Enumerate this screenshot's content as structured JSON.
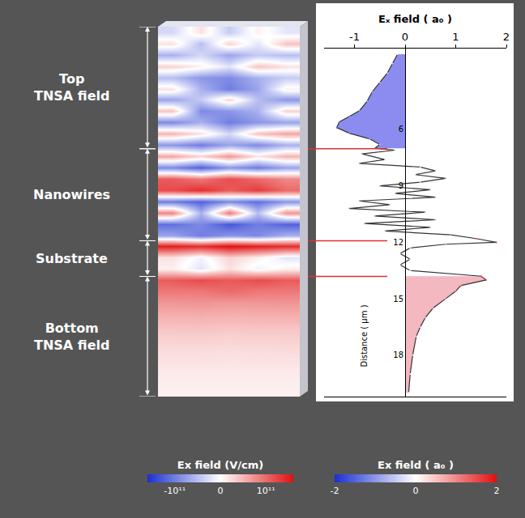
{
  "chart_data": [
    {
      "type": "heatmap",
      "tick_labels": false,
      "y": [
        0.8,
        1.4,
        2.0,
        2.6,
        3.2,
        3.8,
        4.4,
        5.0,
        5.6,
        6.2,
        6.8,
        7.4,
        8.0,
        8.6,
        9.2,
        9.8,
        10.4,
        11.0,
        11.6,
        12.2,
        12.8,
        13.4,
        14.0,
        14.6,
        15.2,
        15.8,
        16.4,
        17.0,
        17.6,
        18.2,
        18.8,
        19.4,
        20.0
      ],
      "cells": [
        [
          -30000000000.0,
          20000000000.0,
          -40000000000.0,
          10000000000.0,
          -20000000000.0
        ],
        [
          20000000000.0,
          -50000000000.0,
          30000000000.0,
          -20000000000.0,
          40000000000.0
        ],
        [
          -60000000000.0,
          -30000000000.0,
          -70000000000.0,
          -40000000000.0,
          -50000000000.0
        ],
        [
          30000000000.0,
          10000000000.0,
          -20000000000.0,
          40000000000.0,
          20000000000.0
        ],
        [
          -50000000000.0,
          -80000000000.0,
          -90000000000.0,
          -60000000000.0,
          -40000000000.0
        ],
        [
          20000000000.0,
          -60000000000.0,
          -100000000000.0,
          -70000000000.0,
          10000000000.0
        ],
        [
          -70000000000.0,
          -40000000000.0,
          30000000000.0,
          -50000000000.0,
          -80000000000.0
        ],
        [
          40000000000.0,
          -90000000000.0,
          -80000000000.0,
          -60000000000.0,
          30000000000.0
        ],
        [
          -90000000000.0,
          -60000000000.0,
          -100000000000.0,
          -80000000000.0,
          -70000000000.0
        ],
        [
          50000000000.0,
          20000000000.0,
          -30000000000.0,
          40000000000.0,
          60000000000.0
        ],
        [
          -80000000000.0,
          -100000000000.0,
          -70000000000.0,
          -90000000000.0,
          -60000000000.0
        ],
        [
          60000000000.0,
          30000000000.0,
          70000000000.0,
          20000000000.0,
          50000000000.0
        ],
        [
          -90000000000.0,
          -120000000000.0,
          -80000000000.0,
          -100000000000.0,
          -70000000000.0
        ],
        [
          110000000000.0,
          90000000000.0,
          120000000000.0,
          100000000000.0,
          80000000000.0
        ],
        [
          120000000000.0,
          140000000000.0,
          110000000000.0,
          130000000000.0,
          100000000000.0
        ],
        [
          -100000000000.0,
          -120000000000.0,
          -90000000000.0,
          -110000000000.0,
          -80000000000.0
        ],
        [
          80000000000.0,
          -60000000000.0,
          90000000000.0,
          -50000000000.0,
          70000000000.0
        ],
        [
          -110000000000.0,
          -90000000000.0,
          -130000000000.0,
          -100000000000.0,
          -120000000000.0
        ],
        [
          -70000000000.0,
          -100000000000.0,
          -80000000000.0,
          -90000000000.0,
          -60000000000.0
        ],
        [
          150000000000.0,
          140000000000.0,
          160000000000.0,
          150000000000.0,
          140000000000.0
        ],
        [
          20000000000.0,
          -10000000000.0,
          30000000000.0,
          10000000000.0,
          -20000000000.0
        ],
        [
          10000000000.0,
          -20000000000.0,
          20000000000.0,
          -10000000000.0,
          10000000000.0
        ],
        [
          110000000000.0,
          120000000000.0,
          110000000000.0,
          120000000000.0,
          110000000000.0
        ],
        [
          90000000000.0,
          90000000000.0,
          100000000000.0,
          90000000000.0,
          90000000000.0
        ],
        [
          70000000000.0,
          72000000000.0,
          68000000000.0,
          70000000000.0,
          71000000000.0
        ],
        [
          55000000000.0,
          56000000000.0,
          54000000000.0,
          55000000000.0,
          56000000000.0
        ],
        [
          42000000000.0,
          43000000000.0,
          41000000000.0,
          42000000000.0,
          42000000000.0
        ],
        [
          32000000000.0,
          33000000000.0,
          31000000000.0,
          32000000000.0,
          32000000000.0
        ],
        [
          25000000000.0,
          25000000000.0,
          24000000000.0,
          25000000000.0,
          26000000000.0
        ],
        [
          20000000000.0,
          20000000000.0,
          19000000000.0,
          20000000000.0,
          20000000000.0
        ],
        [
          15000000000.0,
          15000000000.0,
          15000000000.0,
          15000000000.0,
          15000000000.0
        ],
        [
          12000000000.0,
          12000000000.0,
          12000000000.0,
          12000000000.0,
          12000000000.0
        ],
        [
          10000000000.0,
          10000000000.0,
          10000000000.0,
          10000000000.0,
          10000000000.0
        ]
      ],
      "ylim": [
        0.5,
        20.2
      ],
      "colorbar": {
        "title": "Ex field (V/cm)",
        "range": [
          -160000000000.0,
          160000000000.0
        ],
        "ticks": [
          {
            "value": -100000000000.0,
            "label": "-10¹¹"
          },
          0,
          {
            "value": 100000000000.0,
            "label": "10¹¹"
          }
        ]
      },
      "regions": [
        {
          "label": "Top TNSA field",
          "from": 0.5,
          "to": 7.0,
          "color": "#8c8cf0"
        },
        {
          "label": "Nanowires",
          "from": 7.0,
          "to": 11.9
        },
        {
          "label": "Substrate",
          "from": 11.9,
          "to": 13.8
        },
        {
          "label": "Bottom TNSA field",
          "from": 13.8,
          "to": 20.2,
          "color": "#f4b8c0"
        }
      ]
    },
    {
      "type": "line",
      "x_label": "Eₓ field ( a₀ )",
      "y_label": "Distance ( µm )",
      "x": [
        -0.15,
        -0.25,
        -0.35,
        -0.5,
        -0.65,
        -0.75,
        -0.9,
        -1.1,
        -1.3,
        -1.35,
        -1.1,
        -0.7,
        -0.5,
        -0.6,
        -0.2,
        -0.85,
        -0.4,
        -0.9,
        0.3,
        0.6,
        0.2,
        0.8,
        0.3,
        -0.5,
        0.5,
        -0.2,
        0.6,
        -0.9,
        -0.3,
        -1.1,
        0.4,
        -0.6,
        0.6,
        -0.8,
        0.5,
        -0.4,
        0.9,
        1.4,
        1.8,
        0.8,
        0.1,
        -0.1,
        0.1,
        -0.1,
        0.1,
        1.5,
        1.6,
        1.1,
        1.0,
        0.8,
        0.55,
        0.4,
        0.3,
        0.22,
        0.15,
        0.1,
        0.07
      ],
      "y": [
        2.0,
        2.5,
        3.0,
        3.5,
        4.0,
        4.5,
        5.0,
        5.3,
        5.6,
        5.9,
        6.2,
        6.5,
        6.8,
        7.0,
        7.1,
        7.3,
        7.6,
        7.8,
        8.0,
        8.2,
        8.4,
        8.6,
        8.8,
        9.0,
        9.2,
        9.4,
        9.6,
        9.8,
        10.0,
        10.2,
        10.4,
        10.6,
        10.8,
        11.0,
        11.2,
        11.4,
        11.6,
        11.8,
        12.0,
        12.1,
        12.3,
        12.6,
        12.9,
        13.2,
        13.5,
        13.8,
        14.0,
        14.3,
        14.6,
        15.0,
        15.5,
        16.0,
        16.5,
        17.0,
        18.0,
        19.0,
        20.0
      ],
      "xlim": [
        -1.6,
        2.0
      ],
      "xticks": [
        -1,
        0,
        1,
        2
      ],
      "ylim": [
        1.7,
        20.2
      ],
      "yticks": [
        6,
        9,
        12,
        15,
        18
      ],
      "color": "#333333",
      "colorbar": {
        "title": "Ex field ( a₀ )",
        "range": [
          -2,
          2
        ],
        "ticks": [
          -2,
          0,
          2
        ]
      }
    }
  ]
}
